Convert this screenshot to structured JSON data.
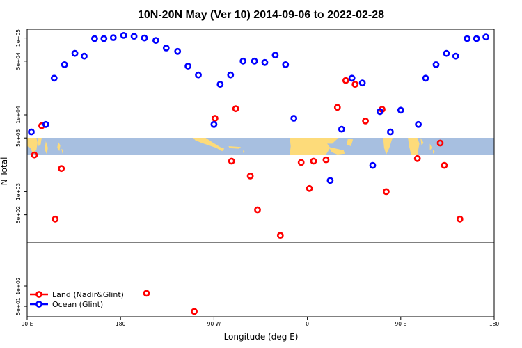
{
  "chart_data": {
    "type": "scatter",
    "title": "10N-20N May (Ver 10)   2014-09-06 to 2022-02-28",
    "xlabel": "Longitude (deg E)",
    "ylabel": "N Total",
    "x_ticks": [
      {
        "value": 90,
        "label": "90 E"
      },
      {
        "value": 180,
        "label": "180"
      },
      {
        "value": 270,
        "label": "90 W"
      },
      {
        "value": 360,
        "label": "0"
      },
      {
        "value": 450,
        "label": "90 E"
      },
      {
        "value": 540,
        "label": "180"
      }
    ],
    "xlim": [
      90,
      540
    ],
    "top_panel": {
      "scale": "log",
      "ylim": [
        220,
        130000
      ],
      "y_ticks": [
        {
          "value": 500,
          "label": "5e+02"
        },
        {
          "value": 1000,
          "label": "1e+03"
        },
        {
          "value": 5000,
          "label": "5e+03"
        },
        {
          "value": 10000,
          "label": "1e+04"
        },
        {
          "value": 50000,
          "label": "5e+04"
        },
        {
          "value": 100000,
          "label": "1e+05"
        }
      ]
    },
    "bottom_panel": {
      "scale": "log",
      "ylim": [
        35,
        450
      ],
      "y_ticks": [
        {
          "value": 50,
          "label": "5e+01"
        },
        {
          "value": 100,
          "label": "1e+02"
        }
      ]
    },
    "map_strip": {
      "ocean_color": "#a7bfe0",
      "land_color": "#fddb7a"
    },
    "series": [
      {
        "name": "Land (Nadir&Glint)",
        "color": "#ff0000",
        "points": [
          [
            97,
            3000
          ],
          [
            104,
            7200
          ],
          [
            117,
            440
          ],
          [
            123,
            2000
          ],
          [
            271,
            9000
          ],
          [
            287,
            2500
          ],
          [
            291,
            12000
          ],
          [
            305,
            1600
          ],
          [
            312,
            580
          ],
          [
            354,
            2400
          ],
          [
            362,
            1100
          ],
          [
            366,
            2500
          ],
          [
            378,
            2600
          ],
          [
            389,
            12500
          ],
          [
            397,
            28000
          ],
          [
            406,
            25000
          ],
          [
            416,
            8300
          ],
          [
            432,
            11800
          ],
          [
            436,
            1000
          ],
          [
            488,
            4300
          ],
          [
            466,
            2700
          ],
          [
            492,
            2200
          ],
          [
            507,
            440
          ],
          [
            205,
            78
          ],
          [
            251,
            42
          ],
          [
            334,
            270
          ]
        ]
      },
      {
        "name": "Ocean (Glint)",
        "color": "#0000ff",
        "points": [
          [
            94,
            6000
          ],
          [
            108,
            7500
          ],
          [
            116,
            30000
          ],
          [
            126,
            45000
          ],
          [
            136,
            63000
          ],
          [
            145,
            58000
          ],
          [
            155,
            98000
          ],
          [
            164,
            98000
          ],
          [
            173,
            101000
          ],
          [
            183,
            108000
          ],
          [
            193,
            105000
          ],
          [
            203,
            100000
          ],
          [
            214,
            93000
          ],
          [
            224,
            74000
          ],
          [
            235,
            67000
          ],
          [
            245,
            43000
          ],
          [
            255,
            33000
          ],
          [
            270,
            7500
          ],
          [
            276,
            25000
          ],
          [
            286,
            33000
          ],
          [
            298,
            50000
          ],
          [
            309,
            50000
          ],
          [
            319,
            48000
          ],
          [
            329,
            60000
          ],
          [
            339,
            45000
          ],
          [
            347,
            9000
          ],
          [
            382,
            1400
          ],
          [
            393,
            6500
          ],
          [
            403,
            30000
          ],
          [
            413,
            26000
          ],
          [
            423,
            2200
          ],
          [
            430,
            11000
          ],
          [
            440,
            6000
          ],
          [
            450,
            11500
          ],
          [
            467,
            7500
          ],
          [
            474,
            30000
          ],
          [
            484,
            45000
          ],
          [
            494,
            63000
          ],
          [
            503,
            58000
          ],
          [
            514,
            98000
          ],
          [
            523,
            98000
          ],
          [
            532,
            103000
          ]
        ]
      }
    ],
    "legend": {
      "position": "bottom-left",
      "entries": [
        {
          "label": "Land (Nadir&Glint)",
          "color": "#ff0000"
        },
        {
          "label": "Ocean (Glint)",
          "color": "#0000ff"
        }
      ]
    }
  }
}
